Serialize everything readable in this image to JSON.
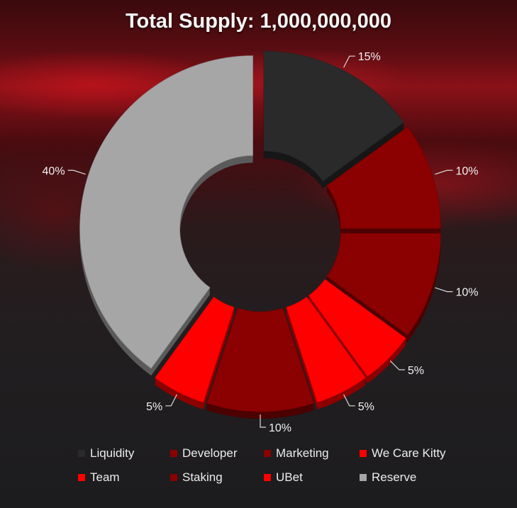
{
  "chart_data": {
    "type": "pie",
    "title": "Total Supply: 1,000,000,000",
    "donut": true,
    "legend_position": "bottom",
    "slices": [
      {
        "name": "Liquidity",
        "value": 15,
        "label": "15%",
        "color": "#2a2a2a"
      },
      {
        "name": "Developer",
        "value": 10,
        "label": "10%",
        "color": "#8b0000"
      },
      {
        "name": "Marketing",
        "value": 10,
        "label": "10%",
        "color": "#8b0000"
      },
      {
        "name": "We Care Kitty",
        "value": 5,
        "label": "5%",
        "color": "#ff0000"
      },
      {
        "name": "Team",
        "value": 5,
        "label": "5%",
        "color": "#ff0000"
      },
      {
        "name": "Staking",
        "value": 10,
        "label": "10%",
        "color": "#8b0000"
      },
      {
        "name": "UBet",
        "value": 5,
        "label": "5%",
        "color": "#ff0000"
      },
      {
        "name": "Reserve",
        "value": 40,
        "label": "40%",
        "color": "#a6a6a6"
      }
    ]
  }
}
